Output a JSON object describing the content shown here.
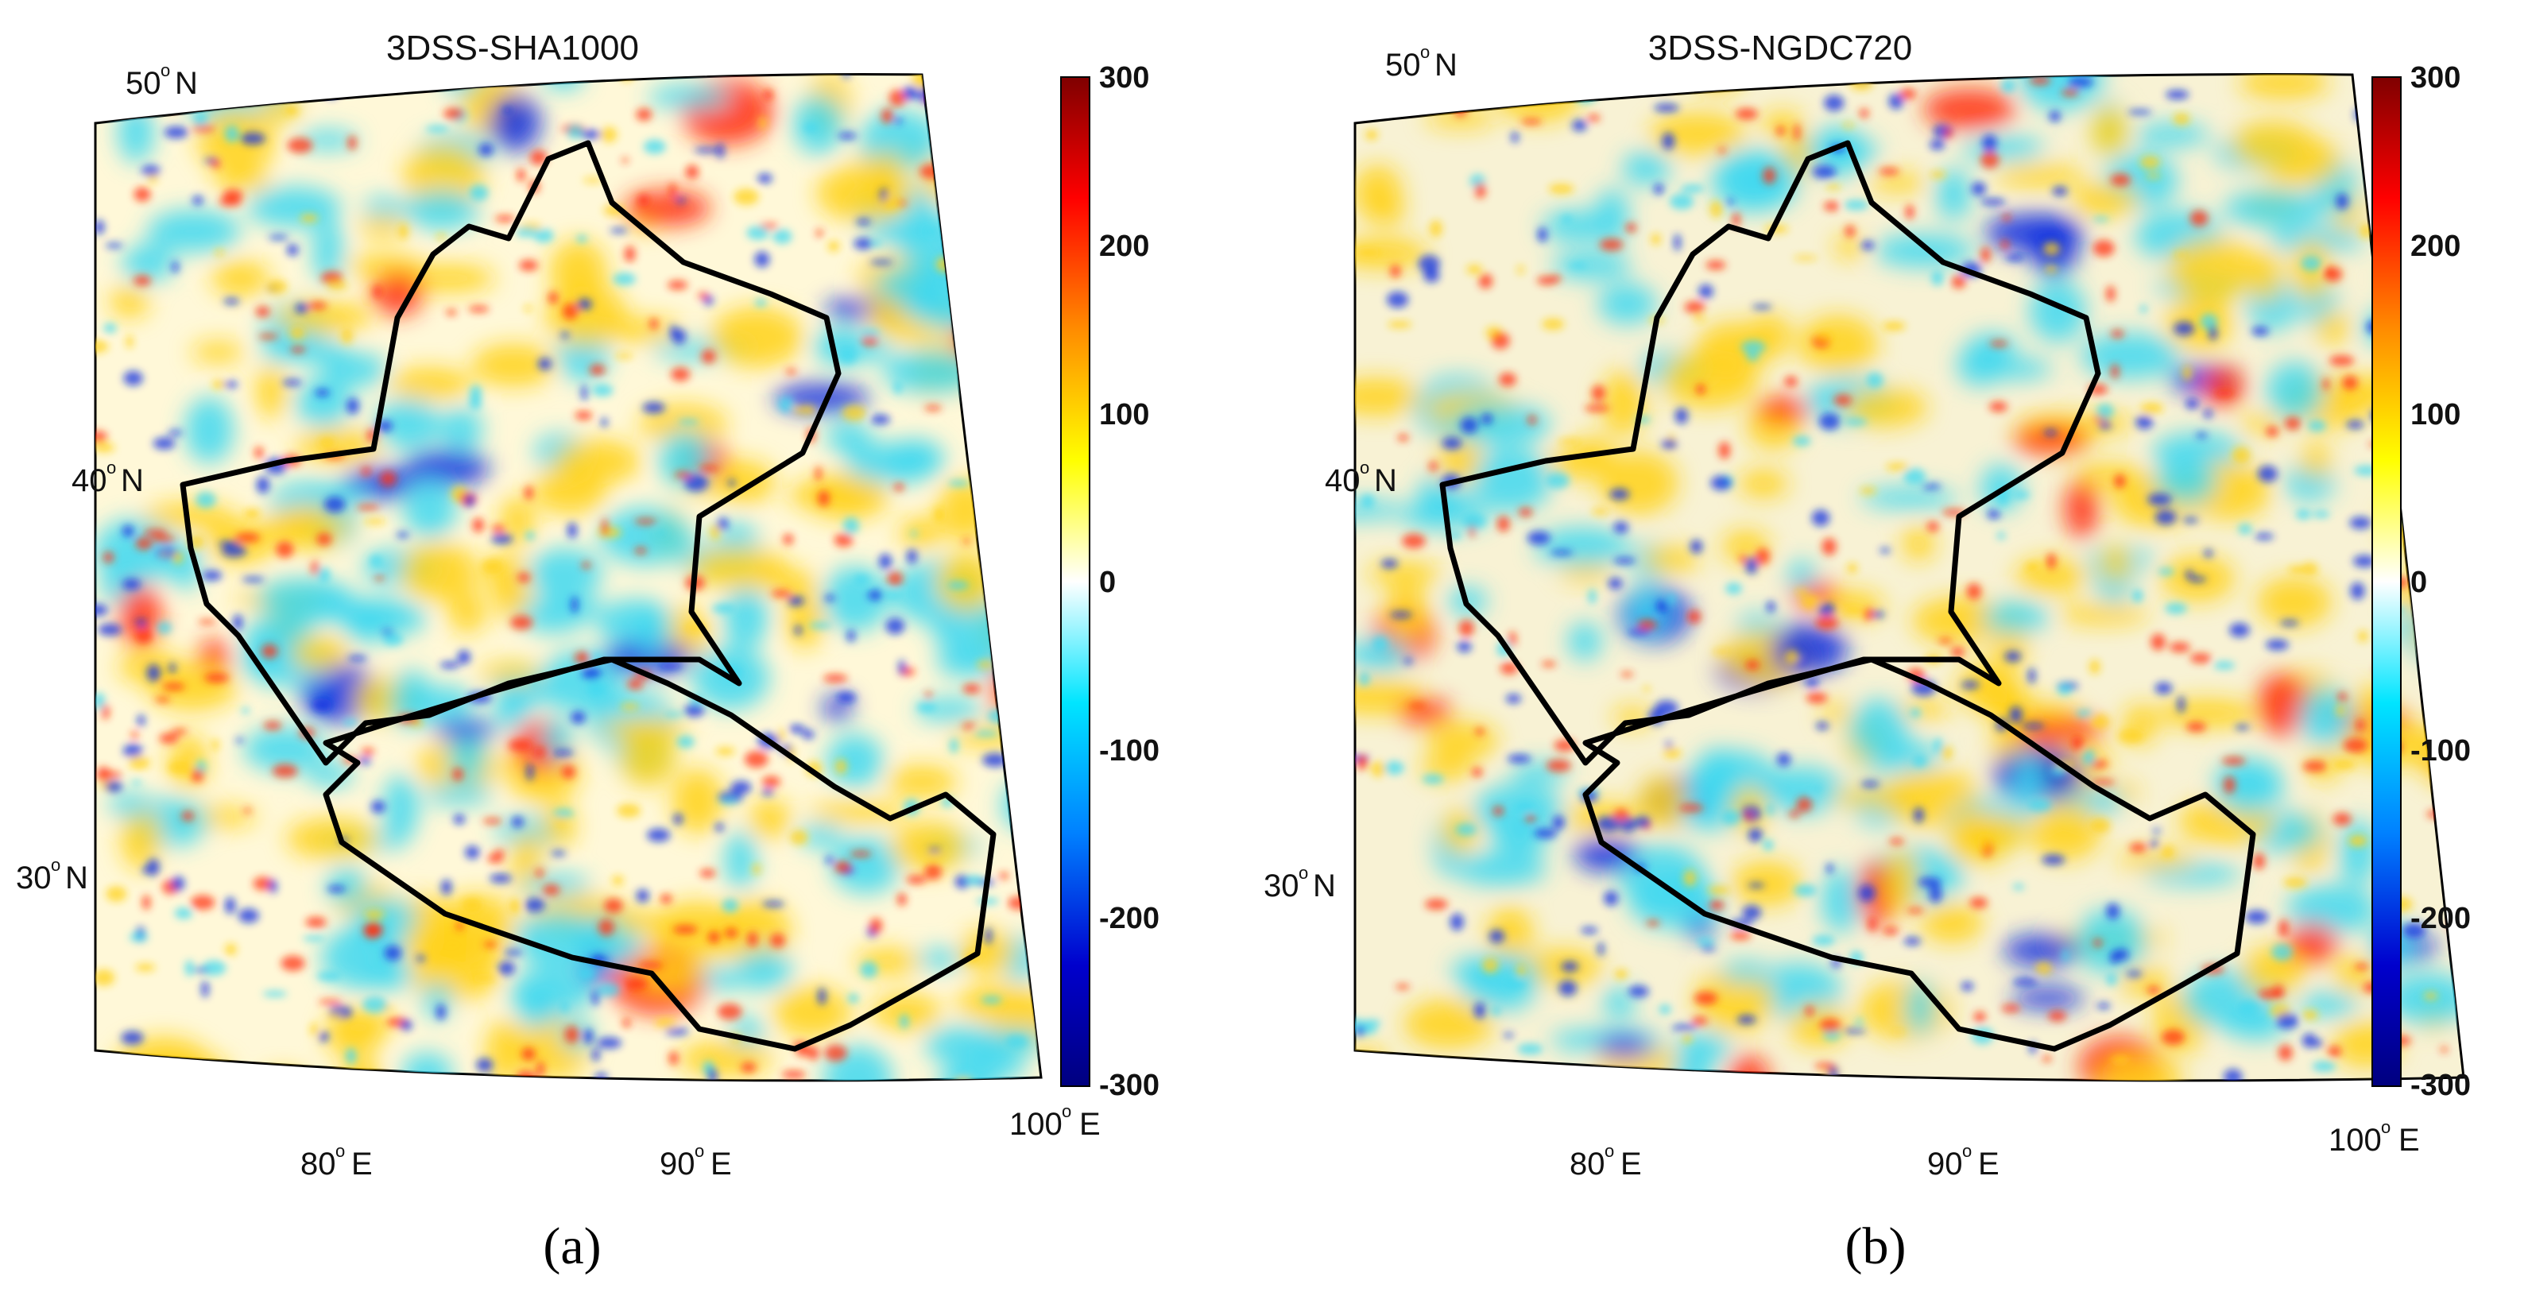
{
  "panels": [
    {
      "id": "a",
      "title": "3DSS-SHA1000",
      "label": "(a)",
      "lat_labels": [
        {
          "deg": "50",
          "hem": "N"
        },
        {
          "deg": "40",
          "hem": "N"
        },
        {
          "deg": "30",
          "hem": "N"
        }
      ],
      "lon_labels": [
        {
          "deg": "80",
          "hem": "E"
        },
        {
          "deg": "90",
          "hem": "E"
        },
        {
          "deg": "100",
          "hem": "E"
        }
      ]
    },
    {
      "id": "b",
      "title": "3DSS-NGDC720",
      "label": "(b)",
      "lat_labels": [
        {
          "deg": "50",
          "hem": "N"
        },
        {
          "deg": "40",
          "hem": "N"
        },
        {
          "deg": "30",
          "hem": "N"
        }
      ],
      "lon_labels": [
        {
          "deg": "80",
          "hem": "E"
        },
        {
          "deg": "90",
          "hem": "E"
        },
        {
          "deg": "100",
          "hem": "E"
        }
      ]
    }
  ],
  "colorbar": {
    "ticks": [
      "300",
      "200",
      "100",
      "0",
      "-100",
      "-200",
      "-300"
    ],
    "range": [
      -300,
      300
    ],
    "colors": [
      "#7f0000",
      "#ff0000",
      "#ff8c00",
      "#ffff00",
      "#ffffff",
      "#00e5ff",
      "#0080ff",
      "#0000cd",
      "#00007f"
    ]
  },
  "map_colors": {
    "warm": "#ffd21a",
    "cold": "#40d8f0",
    "strong_warm": "#ff3010",
    "strong_cold": "#1030e0",
    "border": "#000000"
  }
}
